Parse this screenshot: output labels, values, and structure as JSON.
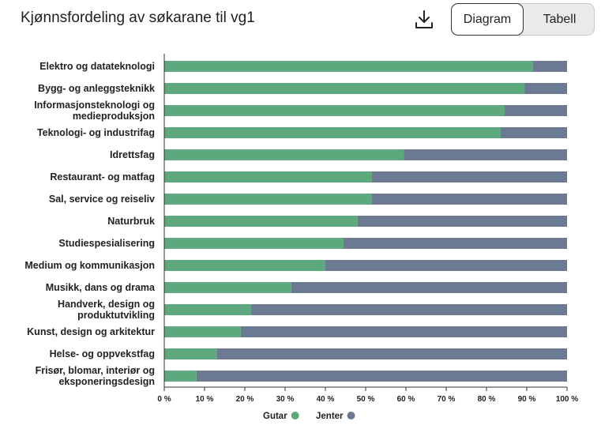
{
  "header": {
    "title": "Kjønnsfordeling av søkarane til vg1",
    "download_icon": "download-icon",
    "view_toggle": {
      "active": "Diagram",
      "inactive": "Tabell"
    }
  },
  "colors": {
    "gutar": "#5ea87e",
    "jenter": "#6b7a92",
    "axis": "#333333"
  },
  "chart_data": {
    "type": "bar",
    "orientation": "horizontal",
    "stacked": true,
    "categories": [
      [
        "Elektro og datateknologi"
      ],
      [
        "Bygg- og anleggsteknikk"
      ],
      [
        "Informasjonsteknologi og",
        "medieproduksjon"
      ],
      [
        "Teknologi- og industrifag"
      ],
      [
        "Idrettsfag"
      ],
      [
        "Restaurant- og matfag"
      ],
      [
        "Sal, service og reiseliv"
      ],
      [
        "Naturbruk"
      ],
      [
        "Studiespesialisering"
      ],
      [
        "Medium og kommunikasjon"
      ],
      [
        "Musikk, dans og drama"
      ],
      [
        "Handverk, design og",
        "produktutvikling"
      ],
      [
        "Kunst, design og arkitektur"
      ],
      [
        "Helse- og oppvekstfag"
      ],
      [
        "Frisør, blomar, interiør og",
        "eksponeringsdesign"
      ]
    ],
    "series": [
      {
        "name": "Gutar",
        "values": [
          91.5,
          89.5,
          84.5,
          83.5,
          59.5,
          51.5,
          51.5,
          48,
          44.5,
          40,
          31.5,
          21.5,
          19,
          13,
          8
        ]
      },
      {
        "name": "Jenter",
        "values": [
          8.5,
          10.5,
          15.5,
          16.5,
          40.5,
          48.5,
          48.5,
          52,
          55.5,
          60,
          68.5,
          78.5,
          81,
          87,
          92
        ]
      }
    ],
    "xlim": [
      0,
      100
    ],
    "xticks": [
      "0 %",
      "10 %",
      "20 %",
      "30 %",
      "40 %",
      "50 %",
      "60 %",
      "70 %",
      "80 %",
      "90 %",
      "100 %"
    ],
    "legend": {
      "placement": "bottom-center",
      "items": [
        "Gutar",
        "Jenter"
      ]
    },
    "title": "Kjønnsfordeling av søkarane til vg1",
    "xlabel": "",
    "ylabel": ""
  }
}
